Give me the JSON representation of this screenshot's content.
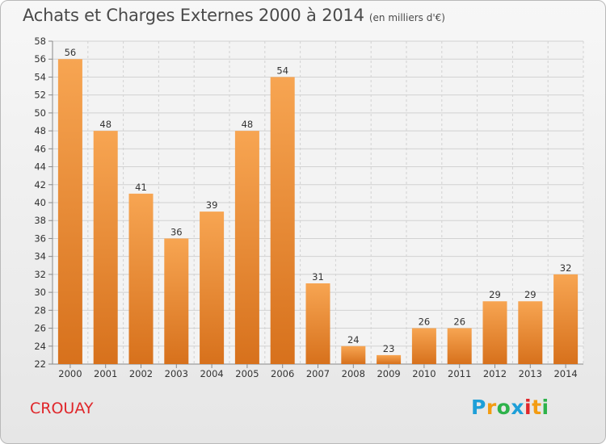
{
  "title": "Achats et Charges Externes 2000 à 2014",
  "unit": "(en milliers d'€)",
  "city": "CROUAY",
  "logo": {
    "letters": [
      "P",
      "r",
      "o",
      "x",
      "i",
      "t",
      "i"
    ],
    "colors": [
      "#1e9fd8",
      "#f39c12",
      "#2db24a",
      "#1e9fd8",
      "#e0262a",
      "#f39c12",
      "#2db24a"
    ]
  },
  "chart_data": {
    "type": "bar",
    "categories": [
      "2000",
      "2001",
      "2002",
      "2003",
      "2004",
      "2005",
      "2006",
      "2007",
      "2008",
      "2009",
      "2010",
      "2011",
      "2012",
      "2013",
      "2014"
    ],
    "values": [
      56,
      48,
      41,
      36,
      39,
      48,
      54,
      31,
      24,
      23,
      26,
      26,
      29,
      29,
      32
    ],
    "ylim": [
      22,
      58
    ],
    "yticks": [
      22,
      24,
      26,
      28,
      30,
      32,
      34,
      36,
      38,
      40,
      42,
      44,
      46,
      48,
      50,
      52,
      54,
      56,
      58
    ],
    "grid": true,
    "bar_color": "#f0932e"
  }
}
